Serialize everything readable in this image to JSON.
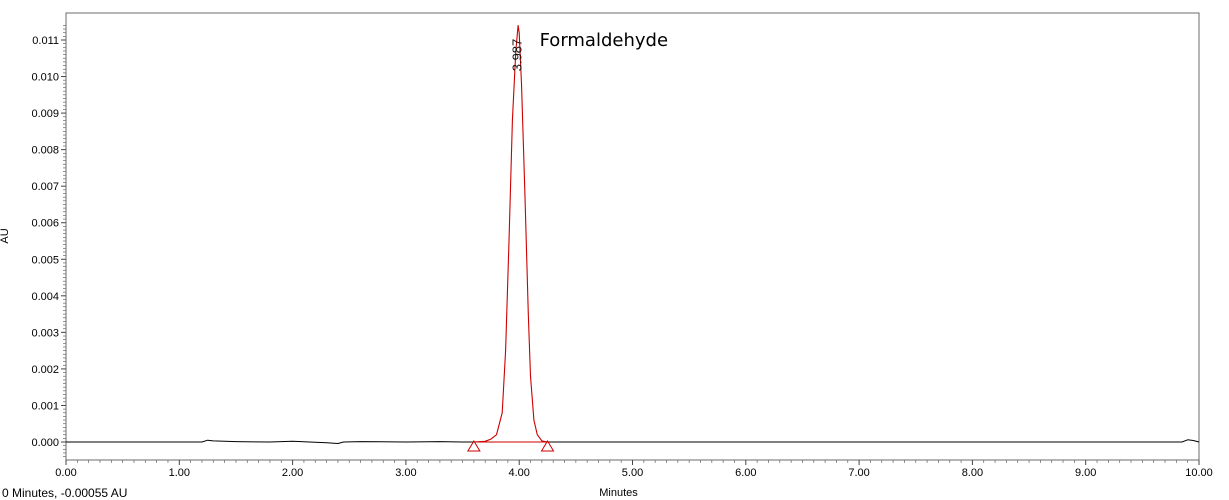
{
  "status_readout": "0 Minutes, -0.00055 AU",
  "chart_data": {
    "type": "line",
    "xlabel": "Minutes",
    "ylabel": "AU",
    "xlim": [
      0,
      10
    ],
    "ylim": [
      -0.0006,
      0.0115
    ],
    "x_ticks": [
      "0.00",
      "1.00",
      "2.00",
      "3.00",
      "4.00",
      "5.00",
      "6.00",
      "7.00",
      "8.00",
      "9.00",
      "10.00"
    ],
    "y_ticks": [
      "0.000",
      "0.001",
      "0.002",
      "0.003",
      "0.004",
      "0.005",
      "0.006",
      "0.007",
      "0.008",
      "0.009",
      "0.010",
      "0.011"
    ],
    "grid": false,
    "series": [
      {
        "color": "#000000",
        "x": [
          0,
          1.0,
          1.2,
          1.25,
          1.3,
          1.5,
          1.8,
          2.0,
          2.3,
          2.4,
          2.45,
          2.6,
          3.0,
          3.3,
          3.5,
          3.6,
          3.7,
          4.25,
          4.3,
          4.5,
          5.0,
          6.0,
          7.0,
          8.0,
          9.0,
          9.85,
          9.9,
          9.95,
          10.0
        ],
        "y": [
          0.0,
          0.0,
          0.0,
          5e-05,
          3e-05,
          1e-05,
          0.0,
          2e-05,
          -2e-05,
          -4e-05,
          0.0,
          1e-05,
          0.0,
          1e-05,
          0.0,
          0.0,
          0.0,
          0.0,
          0.0,
          0.0,
          0.0,
          0.0,
          0.0,
          0.0,
          0.0,
          0.0,
          6e-05,
          4e-05,
          0.0
        ]
      },
      {
        "color": "#cc0000",
        "x": [
          3.6,
          3.7,
          3.75,
          3.8,
          3.85,
          3.88,
          3.91,
          3.94,
          3.97,
          3.99,
          4.0,
          4.02,
          4.05,
          4.08,
          4.1,
          4.13,
          4.16,
          4.2,
          4.25
        ],
        "y": [
          0.0,
          2e-05,
          8e-05,
          0.0002,
          0.0008,
          0.0025,
          0.0055,
          0.0088,
          0.0107,
          0.0114,
          0.0112,
          0.0098,
          0.0068,
          0.0035,
          0.0018,
          0.0006,
          0.0002,
          3e-05,
          0.0
        ]
      }
    ],
    "peak_integration": {
      "start": {
        "x": 3.6,
        "y": 0.0
      },
      "end": {
        "x": 4.25,
        "y": 0.0
      },
      "color": "#cc0000"
    },
    "annotations": [
      {
        "text": "3.987",
        "x": 3.987
      },
      {
        "text": "Formaldehyde",
        "x": 4.18
      }
    ]
  }
}
